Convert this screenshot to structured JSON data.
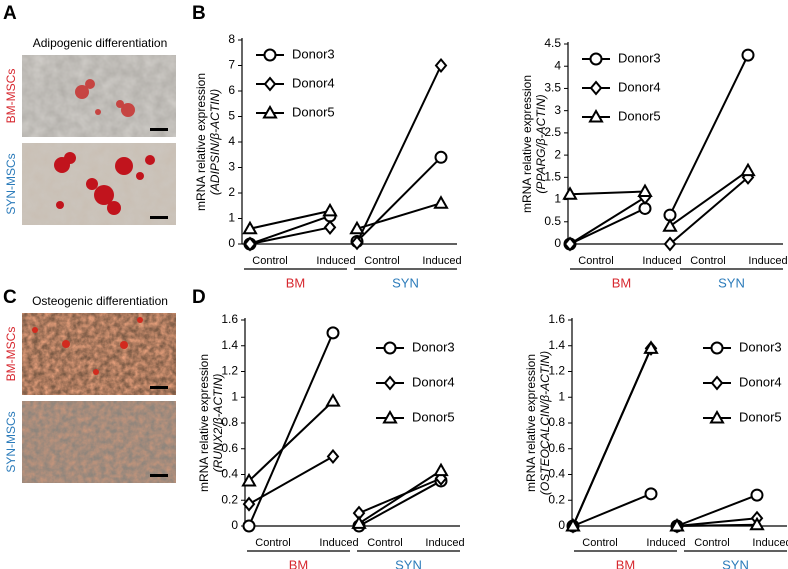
{
  "panels": {
    "labels": [
      "A",
      "B",
      "C",
      "D"
    ],
    "adipogenic": {
      "title": "Adipogenic differentiation",
      "rows": [
        "BM-MSCs",
        "SYN-MSCs"
      ]
    },
    "osteogenic": {
      "title": "Osteogenic differentiation",
      "rows": [
        "BM-MSCs",
        "SYN-MSCs"
      ]
    }
  },
  "chart_data": [
    {
      "type": "line",
      "ylabel": [
        "mRNA relative expression",
        "(ADIPSIN/β-ACTIN)"
      ],
      "categories": [
        "Control",
        "Induced",
        "Control",
        "Induced"
      ],
      "groups": [
        {
          "name": "BM",
          "color": "#d7282f"
        },
        {
          "name": "SYN",
          "color": "#2b7bba"
        }
      ],
      "ylim": [
        0,
        8
      ],
      "yticks": [
        0,
        1,
        2,
        3,
        4,
        5,
        6,
        7,
        8
      ],
      "legend": "upper left",
      "series": [
        {
          "name": "Donor3",
          "marker": "circle",
          "color": "#000000",
          "values": [
            0,
            1.1,
            0.1,
            3.4
          ]
        },
        {
          "name": "Donor4",
          "marker": "diamond",
          "color": "#000000",
          "values": [
            0,
            0.65,
            0.05,
            7.0
          ]
        },
        {
          "name": "Donor5",
          "marker": "triangle",
          "color": "#000000",
          "values": [
            0.6,
            1.3,
            0.6,
            1.6
          ]
        }
      ]
    },
    {
      "type": "line",
      "ylabel": [
        "mRNA relative expression",
        "(PPARG/β-ACTIN)"
      ],
      "categories": [
        "Control",
        "Induced",
        "Control",
        "Induced"
      ],
      "groups": [
        {
          "name": "BM",
          "color": "#d7282f"
        },
        {
          "name": "SYN",
          "color": "#2b7bba"
        }
      ],
      "ylim": [
        0,
        4.5
      ],
      "yticks": [
        0,
        0.5,
        1,
        1.5,
        2,
        2.5,
        3,
        3.5,
        4,
        4.5
      ],
      "legend": "upper left",
      "series": [
        {
          "name": "Donor3",
          "marker": "circle",
          "color": "#000000",
          "values": [
            0,
            0.8,
            0.65,
            4.25
          ]
        },
        {
          "name": "Donor4",
          "marker": "diamond",
          "color": "#000000",
          "values": [
            0,
            1.05,
            0,
            1.5
          ]
        },
        {
          "name": "Donor5",
          "marker": "triangle",
          "color": "#000000",
          "values": [
            1.12,
            1.18,
            0.4,
            1.65
          ]
        }
      ]
    },
    {
      "type": "line",
      "ylabel": [
        "mRNA relative expression",
        "(RUNX2/β-ACTIN)"
      ],
      "categories": [
        "Control",
        "Induced",
        "Control",
        "Induced"
      ],
      "groups": [
        {
          "name": "BM",
          "color": "#d7282f"
        },
        {
          "name": "SYN",
          "color": "#2b7bba"
        }
      ],
      "ylim": [
        0,
        1.6
      ],
      "yticks": [
        0,
        0.2,
        0.4,
        0.6,
        0.8,
        1,
        1.2,
        1.4,
        1.6
      ],
      "legend": "upper right",
      "series": [
        {
          "name": "Donor3",
          "marker": "circle",
          "color": "#000000",
          "values": [
            0,
            1.5,
            0,
            0.35
          ]
        },
        {
          "name": "Donor4",
          "marker": "diamond",
          "color": "#000000",
          "values": [
            0.17,
            0.54,
            0.1,
            0.37
          ]
        },
        {
          "name": "Donor5",
          "marker": "triangle",
          "color": "#000000",
          "values": [
            0.35,
            0.97,
            0.02,
            0.43
          ]
        }
      ]
    },
    {
      "type": "line",
      "ylabel": [
        "mRNA relative expression",
        "(OSTEOCALCIN/β-ACTIN)"
      ],
      "categories": [
        "Control",
        "Induced",
        "Control",
        "Induced"
      ],
      "groups": [
        {
          "name": "BM",
          "color": "#d7282f"
        },
        {
          "name": "SYN",
          "color": "#2b7bba"
        }
      ],
      "ylim": [
        0,
        1.6
      ],
      "yticks": [
        0,
        0.2,
        0.4,
        0.6,
        0.8,
        1,
        1.2,
        1.4,
        1.6
      ],
      "legend": "upper right",
      "series": [
        {
          "name": "Donor3",
          "marker": "circle",
          "color": "#000000",
          "values": [
            0,
            0.25,
            0,
            0.24
          ]
        },
        {
          "name": "Donor4",
          "marker": "diamond",
          "color": "#000000",
          "values": [
            0,
            1.38,
            0,
            0.06
          ]
        },
        {
          "name": "Donor5",
          "marker": "triangle",
          "color": "#000000",
          "values": [
            0,
            1.38,
            0,
            0.01
          ]
        }
      ]
    }
  ]
}
